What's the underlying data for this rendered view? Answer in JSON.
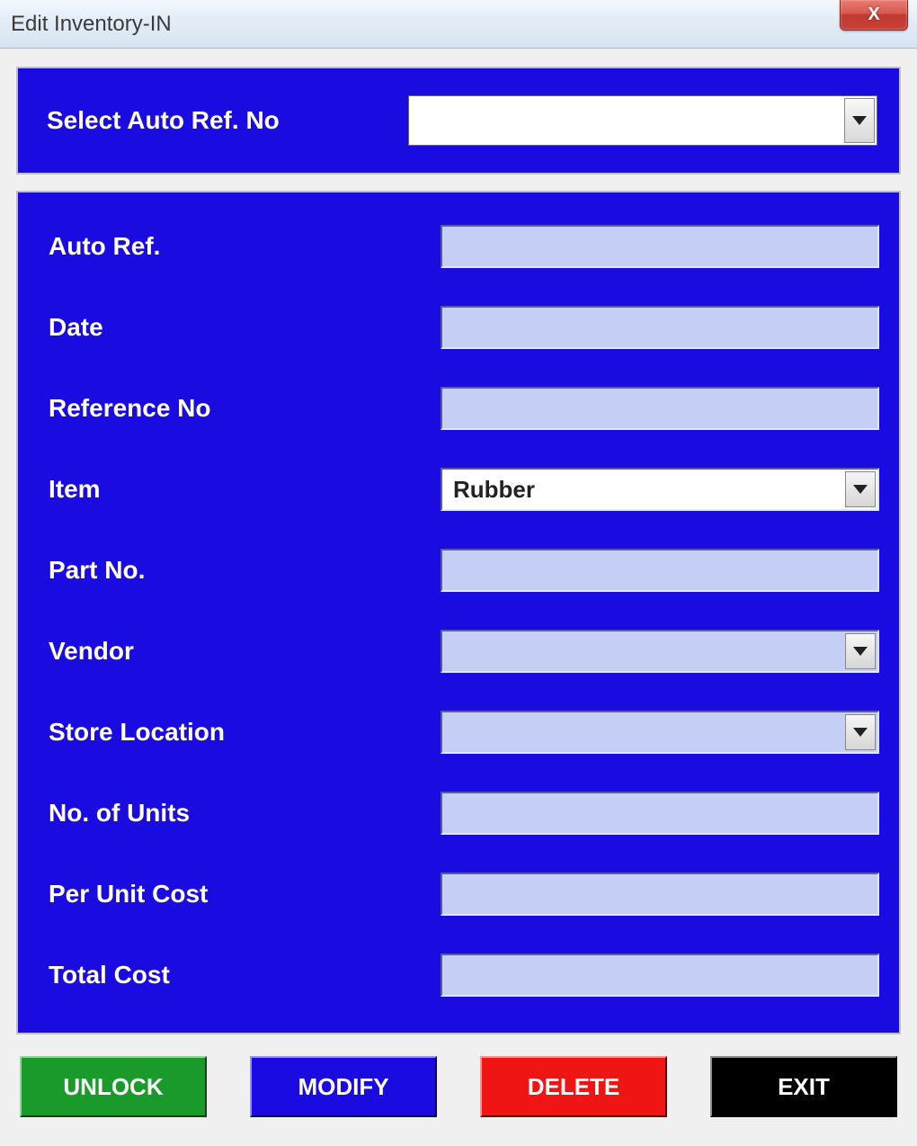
{
  "window": {
    "title": "Edit Inventory-IN"
  },
  "colors": {
    "panel_bg": "#1a0be0",
    "field_bg": "#c5cef4",
    "btn_green": "#1a9a2b",
    "btn_blue": "#1a0be0",
    "btn_red": "#ef1515",
    "btn_black": "#000000"
  },
  "top": {
    "label": "Select Auto Ref. No",
    "value": ""
  },
  "fields": {
    "auto_ref": {
      "label": "Auto Ref.",
      "value": "",
      "type": "text"
    },
    "date": {
      "label": "Date",
      "value": "",
      "type": "text"
    },
    "ref_no": {
      "label": "Reference No",
      "value": "",
      "type": "text"
    },
    "item": {
      "label": "Item",
      "value": "Rubber",
      "type": "combo"
    },
    "part_no": {
      "label": "Part No.",
      "value": "",
      "type": "text"
    },
    "vendor": {
      "label": "Vendor",
      "value": "",
      "type": "disabled-combo"
    },
    "store_loc": {
      "label": "Store Location",
      "value": "",
      "type": "disabled-combo"
    },
    "units": {
      "label": "No. of Units",
      "value": "",
      "type": "text"
    },
    "unit_cost": {
      "label": "Per Unit Cost",
      "value": "",
      "type": "text"
    },
    "total_cost": {
      "label": "Total Cost",
      "value": "",
      "type": "text"
    }
  },
  "buttons": {
    "unlock": "UNLOCK",
    "modify": "MODIFY",
    "delete": "DELETE",
    "exit": "EXIT"
  }
}
